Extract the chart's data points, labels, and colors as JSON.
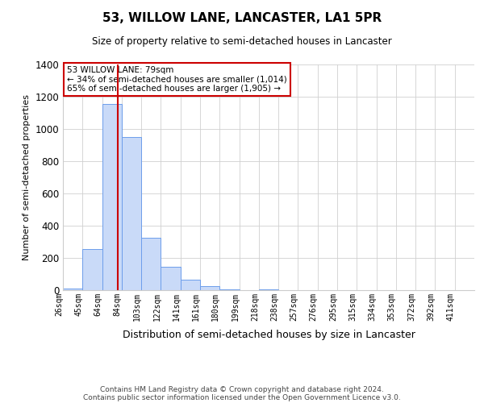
{
  "title": "53, WILLOW LANE, LANCASTER, LA1 5PR",
  "subtitle": "Size of property relative to semi-detached houses in Lancaster",
  "xlabel": "Distribution of semi-detached houses by size in Lancaster",
  "ylabel": "Number of semi-detached properties",
  "bin_edges": [
    26,
    45,
    64,
    83,
    102,
    121,
    140,
    159,
    178,
    197,
    216,
    235,
    254,
    273,
    292,
    311,
    330,
    349,
    368,
    387,
    406,
    425
  ],
  "bin_labels": [
    "26sqm",
    "45sqm",
    "64sqm",
    "84sqm",
    "103sqm",
    "122sqm",
    "141sqm",
    "161sqm",
    "180sqm",
    "199sqm",
    "218sqm",
    "238sqm",
    "257sqm",
    "276sqm",
    "295sqm",
    "315sqm",
    "334sqm",
    "353sqm",
    "372sqm",
    "392sqm",
    "411sqm"
  ],
  "counts": [
    10,
    255,
    1155,
    950,
    325,
    145,
    65,
    25,
    5,
    0,
    5,
    0,
    0,
    0,
    0,
    0,
    0,
    0,
    0,
    0,
    0
  ],
  "bar_facecolor": "#c9daf8",
  "bar_edgecolor": "#6d9eeb",
  "property_value": 79,
  "vline_color": "#cc0000",
  "annotation_line1": "53 WILLOW LANE: 79sqm",
  "annotation_line2": "← 34% of semi-detached houses are smaller (1,014)",
  "annotation_line3": "65% of semi-detached houses are larger (1,905) →",
  "annotation_box_edgecolor": "#cc0000",
  "annotation_box_facecolor": "#ffffff",
  "ylim": [
    0,
    1400
  ],
  "footer_line1": "Contains HM Land Registry data © Crown copyright and database right 2024.",
  "footer_line2": "Contains public sector information licensed under the Open Government Licence v3.0.",
  "background_color": "#ffffff",
  "grid_color": "#d0d0d0"
}
